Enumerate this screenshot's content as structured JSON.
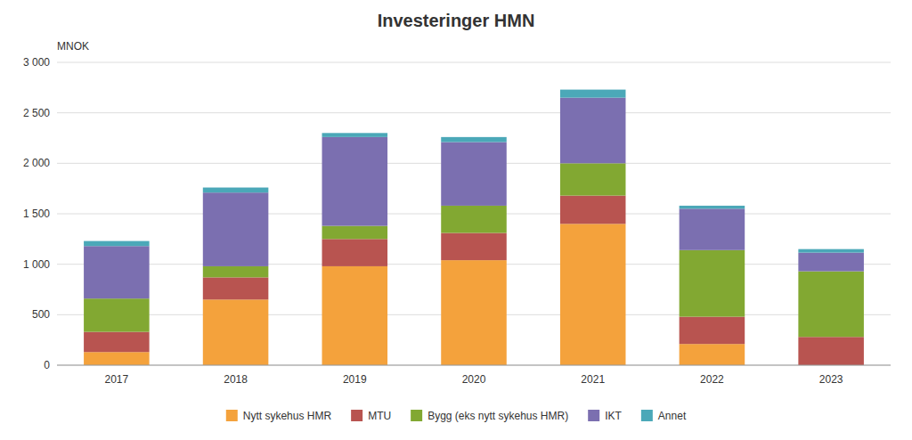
{
  "chart_data": {
    "type": "bar",
    "stacked": true,
    "title": "Investeringer HMN",
    "y_label": "MNOK",
    "categories": [
      "2017",
      "2018",
      "2019",
      "2020",
      "2021",
      "2022",
      "2023"
    ],
    "series": [
      {
        "name": "Nytt sykehus HMR",
        "color": "#F4A23C",
        "values": [
          130,
          650,
          980,
          1040,
          1400,
          210,
          0
        ]
      },
      {
        "name": "MTU",
        "color": "#B85450",
        "values": [
          200,
          220,
          270,
          270,
          280,
          270,
          280
        ]
      },
      {
        "name": "Bygg (eks nytt sykehus HMR)",
        "color": "#82A832",
        "values": [
          330,
          110,
          130,
          270,
          320,
          660,
          650
        ]
      },
      {
        "name": "IKT",
        "color": "#7B6FB0",
        "values": [
          520,
          730,
          880,
          630,
          650,
          410,
          185
        ]
      },
      {
        "name": "Annet",
        "color": "#4BA8B8",
        "values": [
          50,
          50,
          40,
          50,
          80,
          30,
          35
        ]
      }
    ],
    "ylim": [
      0,
      3000
    ],
    "yticks": [
      0,
      500,
      {
        "value": 1000,
        "label": "1 000"
      },
      {
        "value": 1500,
        "label": "1 500"
      },
      {
        "value": 2000,
        "label": "2 000"
      },
      {
        "value": 2500,
        "label": "2 500"
      },
      {
        "value": 3000,
        "label": "3 000"
      }
    ],
    "grid": true,
    "legend": "bottom"
  }
}
